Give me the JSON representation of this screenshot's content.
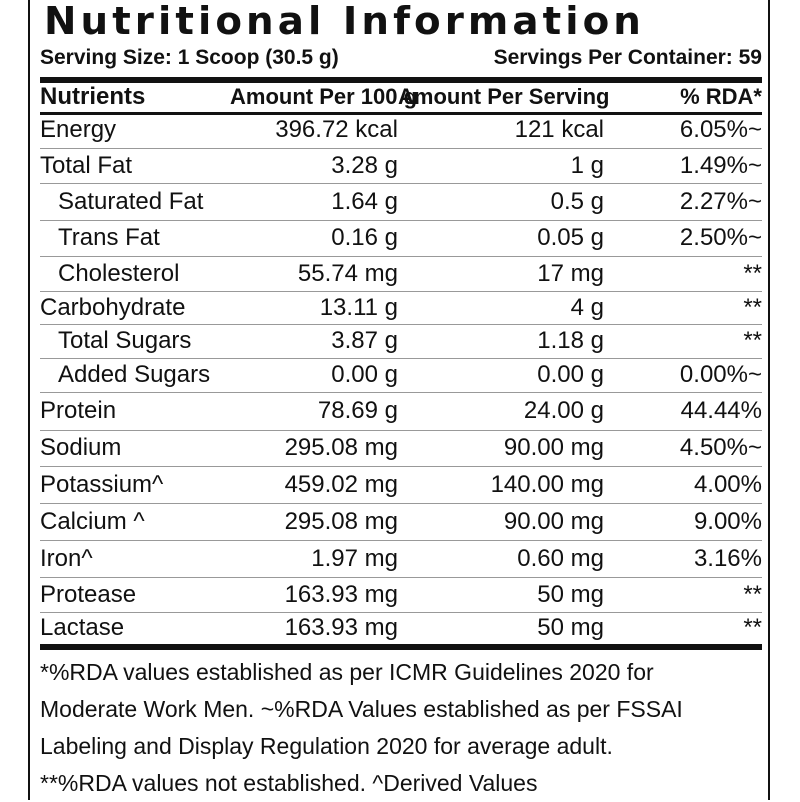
{
  "title": "Nutritional Information",
  "serving_size": "Serving Size: 1 Scoop (30.5 g)",
  "servings_per_container": "Servings Per Container: 59",
  "headers": {
    "nutrients": "Nutrients",
    "per100": "Amount Per 100 g",
    "perServing": "Amount Per Serving",
    "rda": "% RDA*"
  },
  "rows": [
    {
      "name": "Energy",
      "per100": "396.72 kcal",
      "perServing": "121 kcal",
      "rda": "6.05%~"
    },
    {
      "name": "Total Fat",
      "per100": "3.28 g",
      "perServing": "1 g",
      "rda": "1.49%~"
    },
    {
      "name": "Saturated Fat",
      "per100": "1.64 g",
      "perServing": "0.5 g",
      "rda": "2.27%~"
    },
    {
      "name": "Trans Fat",
      "per100": "0.16 g",
      "perServing": "0.05 g",
      "rda": "2.50%~"
    },
    {
      "name": "Cholesterol",
      "per100": "55.74 mg",
      "perServing": "17 mg",
      "rda": "**"
    },
    {
      "name": "Carbohydrate",
      "per100": "13.11 g",
      "perServing": "4 g",
      "rda": "**"
    },
    {
      "name": "Total Sugars",
      "per100": "3.87 g",
      "perServing": "1.18 g",
      "rda": "**"
    },
    {
      "name": "Added Sugars",
      "per100": "0.00 g",
      "perServing": "0.00 g",
      "rda": "0.00%~"
    },
    {
      "name": "Protein",
      "per100": "78.69 g",
      "perServing": "24.00 g",
      "rda": "44.44%"
    },
    {
      "name": "Sodium",
      "per100": "295.08 mg",
      "perServing": "90.00 mg",
      "rda": "4.50%~"
    },
    {
      "name": "Potassium^",
      "per100": "459.02 mg",
      "perServing": "140.00 mg",
      "rda": "4.00%"
    },
    {
      "name": "Calcium ^",
      "per100": "295.08 mg",
      "perServing": "90.00 mg",
      "rda": "9.00%"
    },
    {
      "name": "Iron^",
      "per100": "1.97 mg",
      "perServing": "0.60 mg",
      "rda": "3.16%"
    },
    {
      "name": "Protease",
      "per100": "163.93 mg",
      "perServing": "50 mg",
      "rda": "**"
    },
    {
      "name": "Lactase",
      "per100": "163.93 mg",
      "perServing": "50 mg",
      "rda": "**"
    }
  ],
  "footer": [
    "*%RDA values established as per ICMR Guidelines 2020 for",
    "Moderate Work Men.  ~%RDA Values established as per FSSAI",
    "Labeling and Display Regulation 2020 for average adult.",
    "**%RDA values not established.     ^Derived Values"
  ]
}
